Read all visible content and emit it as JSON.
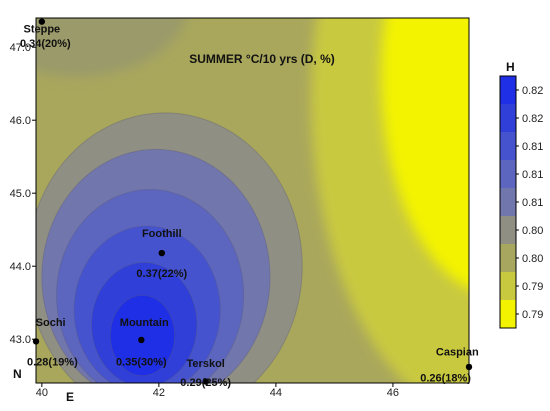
{
  "chart_data": {
    "type": "heatmap",
    "title": "SUMMER  °C/10 yrs (D, %)",
    "xlabel": "E",
    "ylabel": "N",
    "x_ticks": [
      "40",
      "42",
      "44",
      "46"
    ],
    "y_ticks": [
      "43.0",
      "44.0",
      "45.0",
      "46.0",
      "47.0"
    ],
    "xlim": [
      39.9,
      47.3
    ],
    "ylim": [
      42.4,
      47.4
    ],
    "colorbar": {
      "title": "H",
      "levels": [
        "0.82",
        "0.82",
        "0.81",
        "0.81",
        "0.81",
        "0.80",
        "0.80",
        "0.79",
        "0.79"
      ],
      "colors": [
        "#1f2fe6",
        "#2f3fd8",
        "#4653cf",
        "#5c66bf",
        "#7176ad",
        "#8f8f84",
        "#a7a760",
        "#c9c93f",
        "#f3f300"
      ]
    },
    "stations": [
      {
        "name": "Steppe",
        "value": "0.34(20%)",
        "x": 40.0,
        "y": 47.35
      },
      {
        "name": "Foothill",
        "value": "0.37(22%)",
        "x": 42.05,
        "y": 44.18
      },
      {
        "name": "Sochi",
        "value": "0.28(19%)",
        "x": 39.9,
        "y": 42.97
      },
      {
        "name": "Mountain",
        "value": "0.35(30%)",
        "x": 41.7,
        "y": 42.99
      },
      {
        "name": "Terskol",
        "value": "0.29(25%)",
        "x": 42.8,
        "y": 42.42
      },
      {
        "name": "Caspian",
        "value": "0.26(18%)",
        "x": 47.3,
        "y": 42.62
      }
    ]
  }
}
